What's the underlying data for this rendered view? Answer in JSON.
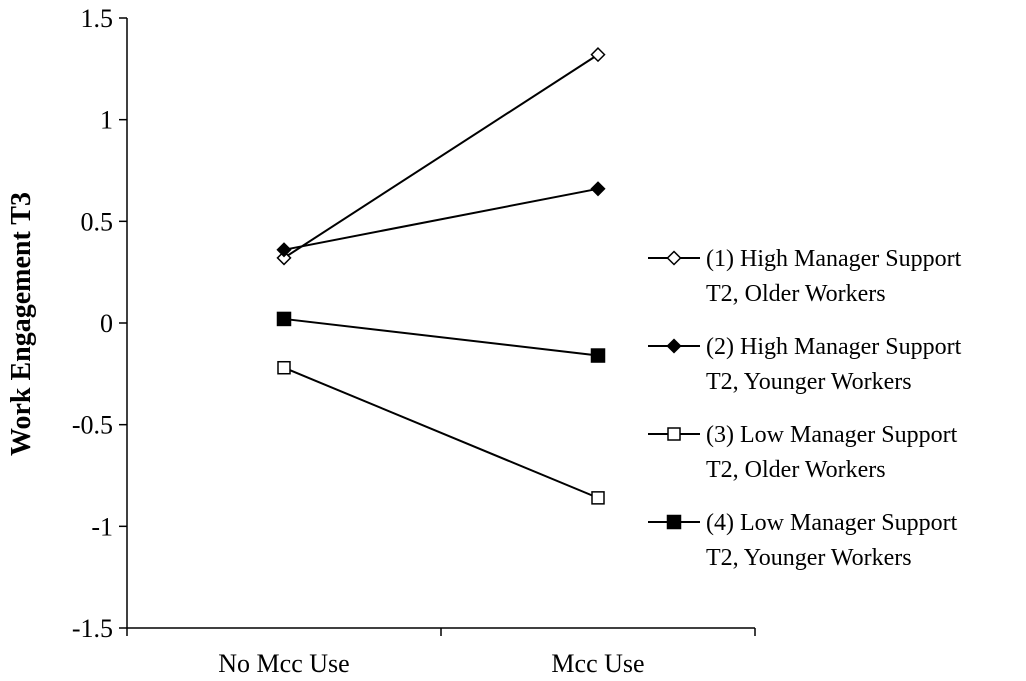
{
  "chart_data": {
    "type": "line",
    "title": "",
    "xlabel": "",
    "ylabel": "Work Engagement T3",
    "categories": [
      "No Mcc Use",
      "Mcc Use"
    ],
    "ylim": [
      -1.5,
      1.5
    ],
    "yticks": [
      "1.5",
      "1",
      "0.5",
      "0",
      "-0.5",
      "-1",
      "-1.5"
    ],
    "grid": false,
    "legend_position": "right",
    "series": [
      {
        "name_lines": [
          "(1) High Manager Support",
          "T2, Older Workers"
        ],
        "marker": "diamond-open",
        "values": [
          0.32,
          1.32
        ]
      },
      {
        "name_lines": [
          "(2) High Manager Support",
          "T2, Younger Workers"
        ],
        "marker": "diamond-filled",
        "values": [
          0.36,
          0.66
        ]
      },
      {
        "name_lines": [
          "(3) Low Manager Support",
          "T2, Older Workers"
        ],
        "marker": "square-open",
        "values": [
          -0.22,
          -0.86
        ]
      },
      {
        "name_lines": [
          "(4) Low Manager Support",
          "T2, Younger Workers"
        ],
        "marker": "square-filled",
        "values": [
          0.02,
          -0.16
        ]
      }
    ],
    "colors": {
      "line": "#000000",
      "fill": "#000000",
      "open_fill": "#ffffff"
    }
  }
}
